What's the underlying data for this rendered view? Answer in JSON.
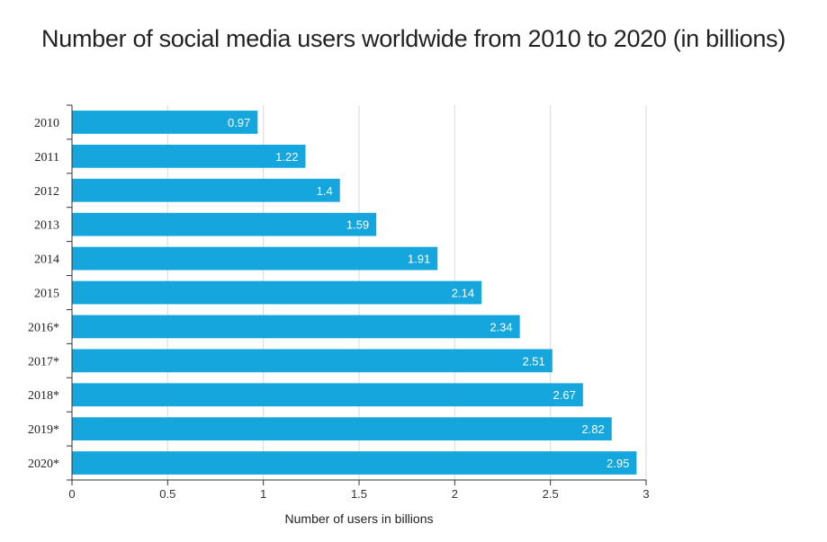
{
  "chart_data": {
    "type": "bar",
    "orientation": "horizontal",
    "title": "Number of social media users worldwide from 2010 to 2020 (in billions)",
    "xlabel": "Number of users in billions",
    "ylabel": "",
    "categories": [
      "2010",
      "2011",
      "2012",
      "2013",
      "2014",
      "2015",
      "2016*",
      "2017*",
      "2018*",
      "2019*",
      "2020*"
    ],
    "values": [
      0.97,
      1.22,
      1.4,
      1.59,
      1.91,
      2.14,
      2.34,
      2.51,
      2.67,
      2.82,
      2.95
    ],
    "data_labels": [
      "0.97",
      "1.22",
      "1.4",
      "1.59",
      "1.91",
      "2.14",
      "2.34",
      "2.51",
      "2.67",
      "2.82",
      "2.95"
    ],
    "xlim": [
      0,
      3
    ],
    "x_ticks": [
      "0",
      "0.5",
      "1",
      "1.5",
      "2",
      "2.5",
      "3"
    ],
    "grid": true,
    "legend": "none",
    "bar_color": "#14a6dc",
    "grid_color": "#d9d9d9"
  }
}
